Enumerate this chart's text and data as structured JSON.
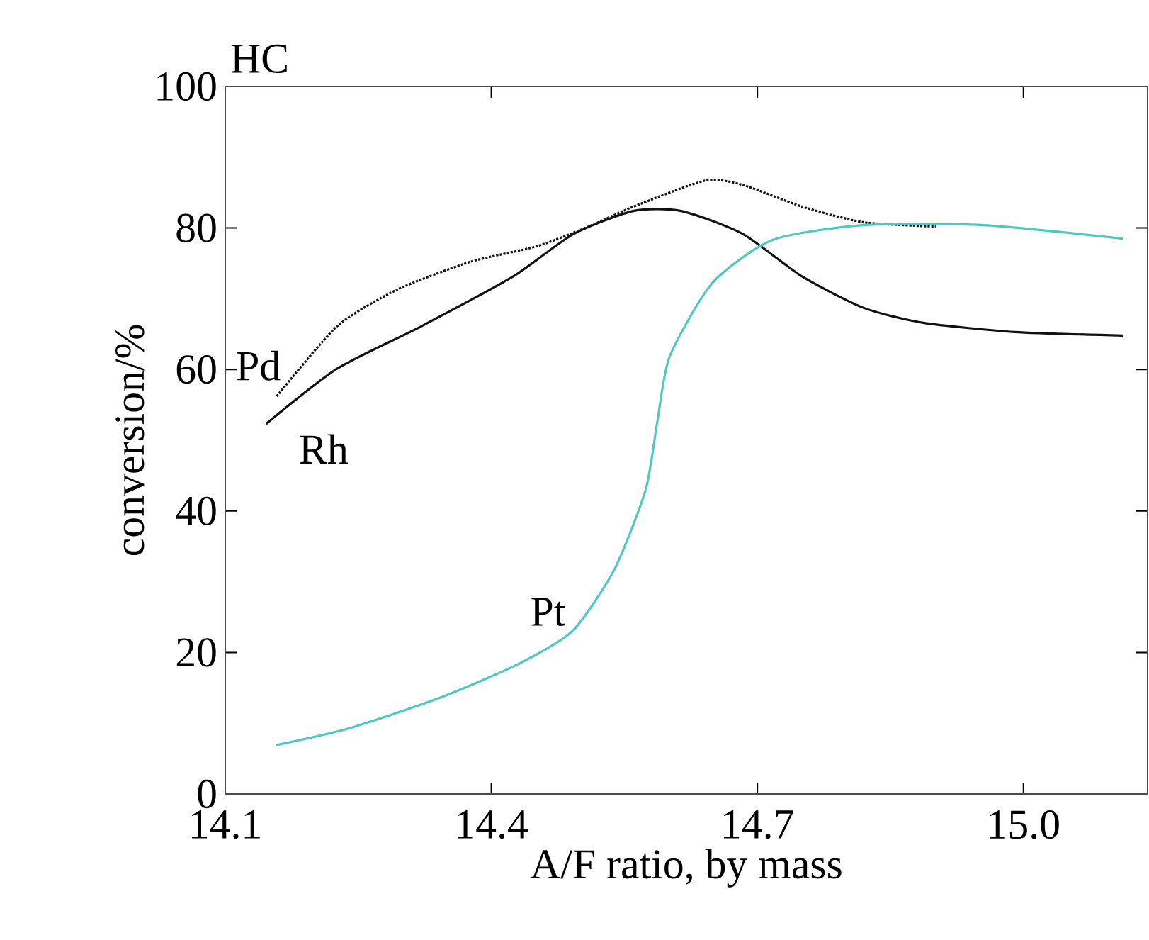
{
  "chart_data": {
    "type": "line",
    "title": "HC",
    "xlabel": "A/F ratio, by mass",
    "ylabel": "conversion/%",
    "xlim": [
      14.1,
      15.14
    ],
    "ylim": [
      0,
      100
    ],
    "xticks": [
      14.1,
      14.4,
      14.7,
      {
        "value": 15.0,
        "label": "15.0"
      }
    ],
    "yticks": [
      0,
      20,
      40,
      60,
      80,
      100
    ],
    "grid": false,
    "marker": "none",
    "series": [
      {
        "name": "Pd",
        "color": "#111111",
        "line_style": "dotted",
        "x": [
          14.158,
          14.226,
          14.294,
          14.376,
          14.451,
          14.506,
          14.56,
          14.641,
          14.683,
          14.751,
          14.82,
          14.901
        ],
        "values": [
          56.2,
          66.1,
          71.3,
          75.2,
          77.4,
          80.0,
          83.0,
          86.7,
          86.1,
          83.0,
          80.8,
          80.2
        ]
      },
      {
        "name": "Rh",
        "color": "#111111",
        "line_style": "solid",
        "x": [
          14.146,
          14.226,
          14.321,
          14.424,
          14.492,
          14.56,
          14.614,
          14.683,
          14.751,
          14.82,
          14.887,
          14.99,
          15.112
        ],
        "values": [
          52.3,
          60.1,
          66.1,
          73.1,
          79.1,
          82.4,
          82.4,
          79.2,
          73.1,
          68.7,
          66.6,
          65.3,
          64.8
        ]
      },
      {
        "name": "Pt",
        "color": "#4fc9c0",
        "line_style": "solid",
        "x": [
          14.157,
          14.24,
          14.342,
          14.431,
          14.492,
          14.539,
          14.574,
          14.587,
          14.601,
          14.649,
          14.717,
          14.819,
          14.955,
          15.112
        ],
        "values": [
          6.9,
          9.3,
          13.6,
          18.4,
          23.1,
          31.8,
          43.0,
          52.5,
          61.8,
          72.2,
          78.3,
          80.4,
          80.4,
          78.5
        ]
      }
    ]
  }
}
